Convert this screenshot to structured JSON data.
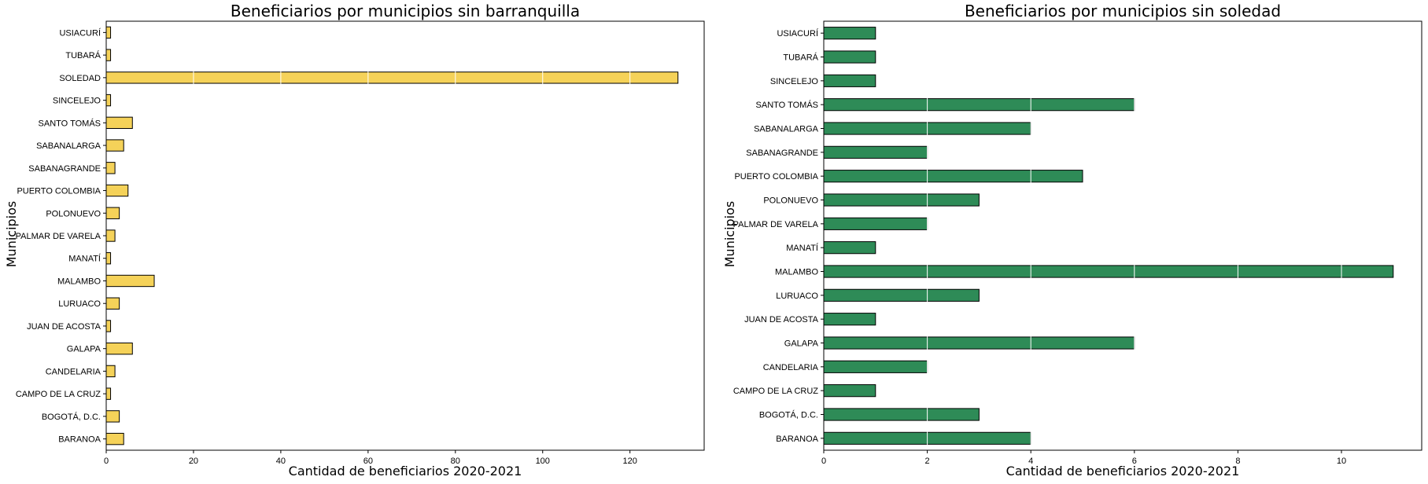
{
  "chart_data": [
    {
      "type": "bar",
      "orientation": "horizontal",
      "title": "Beneficiarios por municipios sin barranquilla",
      "xlabel": "Cantidad de beneficiarios 2020-2021",
      "ylabel": "Municipios",
      "categories": [
        "USIACURÍ",
        "TUBARÁ",
        "SOLEDAD",
        "SINCELEJO",
        "SANTO TOMÁS",
        "SABANALARGA",
        "SABANAGRANDE",
        "PUERTO COLOMBIA",
        "POLONUEVO",
        "PALMAR DE VARELA",
        "MANATÍ",
        "MALAMBO",
        "LURUACO",
        "JUAN DE ACOSTA",
        "GALAPA",
        "CANDELARIA",
        "CAMPO DE LA CRUZ",
        "BOGOTÁ, D.C.",
        "BARANOA"
      ],
      "values": [
        1,
        1,
        131,
        1,
        6,
        4,
        2,
        5,
        3,
        2,
        1,
        11,
        3,
        1,
        6,
        2,
        1,
        3,
        4
      ],
      "xlim": [
        0,
        137
      ],
      "xticks": [
        0,
        20,
        40,
        60,
        80,
        100,
        120
      ],
      "color": "#f5d259",
      "grid": "vertical white lines"
    },
    {
      "type": "bar",
      "orientation": "horizontal",
      "title": "Beneficiarios por municipios sin soledad",
      "xlabel": "Cantidad de beneficiarios 2020-2021",
      "ylabel": "Municipios",
      "categories": [
        "USIACURÍ",
        "TUBARÁ",
        "SINCELEJO",
        "SANTO TOMÁS",
        "SABANALARGA",
        "SABANAGRANDE",
        "PUERTO COLOMBIA",
        "POLONUEVO",
        "PALMAR DE VARELA",
        "MANATÍ",
        "MALAMBO",
        "LURUACO",
        "JUAN DE ACOSTA",
        "GALAPA",
        "CANDELARIA",
        "CAMPO DE LA CRUZ",
        "BOGOTÁ, D.C.",
        "BARANOA"
      ],
      "values": [
        1,
        1,
        1,
        6,
        4,
        2,
        5,
        3,
        2,
        1,
        11,
        3,
        1,
        6,
        2,
        1,
        3,
        4
      ],
      "xlim": [
        0,
        11.55
      ],
      "xticks": [
        0,
        2,
        4,
        6,
        8,
        10
      ],
      "color": "#2e8b57",
      "grid": "vertical white lines"
    }
  ]
}
